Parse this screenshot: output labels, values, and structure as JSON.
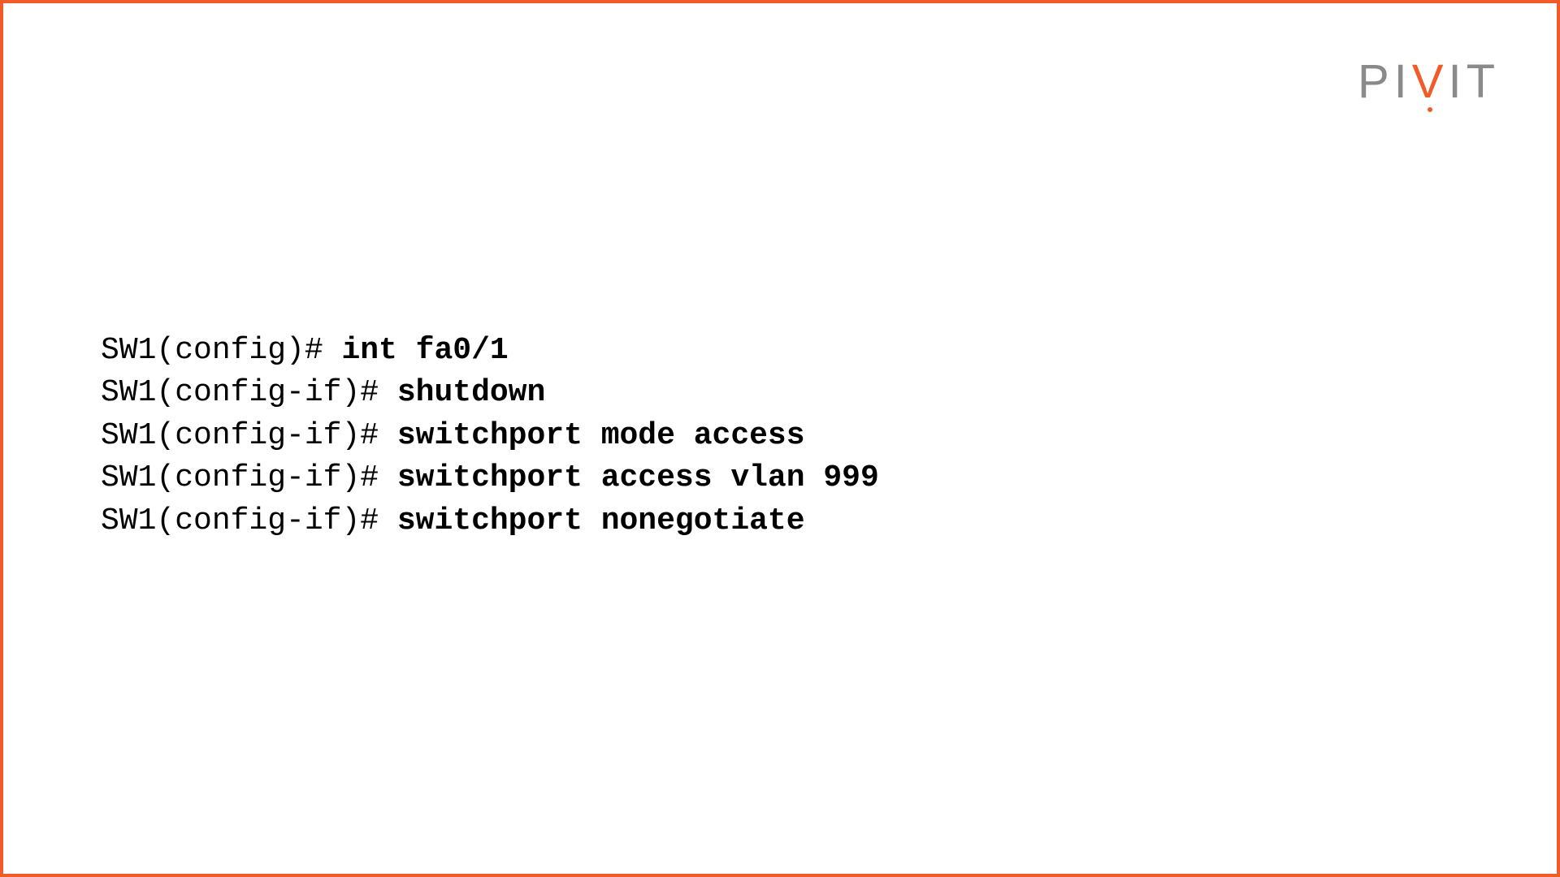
{
  "logo": {
    "text_p": "P",
    "text_i1": "I",
    "text_v": "V",
    "text_i2": "I",
    "text_t": "T",
    "color_gray": "#8a8a8a",
    "color_orange": "#f15a29"
  },
  "frame": {
    "border_color": "#f15a29",
    "border_width": 4,
    "background": "#ffffff"
  },
  "terminal": {
    "font_family": "Courier New",
    "font_size": 38,
    "text_color": "#000000",
    "lines": [
      {
        "prompt": "SW1(config)# ",
        "command": "int fa0/1"
      },
      {
        "prompt": "SW1(config-if)# ",
        "command": "shutdown"
      },
      {
        "prompt": "SW1(config-if)# ",
        "command": "switchport mode access"
      },
      {
        "prompt": "SW1(config-if)# ",
        "command": "switchport access vlan 999"
      },
      {
        "prompt": "SW1(config-if)# ",
        "command": "switchport nonegotiate"
      }
    ]
  }
}
